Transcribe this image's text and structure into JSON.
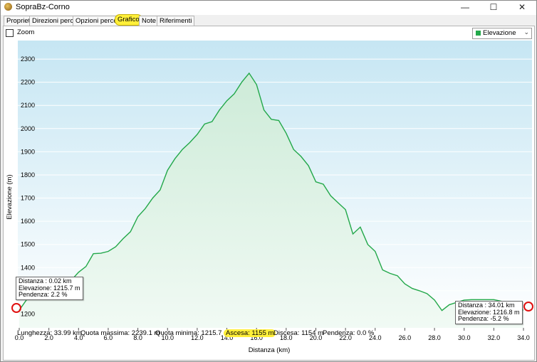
{
  "window": {
    "title": "SopraBz-Corno",
    "minimize": "—",
    "maximize": "☐",
    "close": "✕"
  },
  "tabs": [
    {
      "label": "Proprietà"
    },
    {
      "label": "Direzioni percorso"
    },
    {
      "label": "Opzioni percorso"
    },
    {
      "label": "Grafico"
    },
    {
      "label": "Note"
    },
    {
      "label": "Riferimenti"
    }
  ],
  "toolbar": {
    "zoom_label": "Zoom",
    "series_select": "Elevazione",
    "series_color": "#23a84a"
  },
  "stats": {
    "length": "Lunghezza: 33.99 km",
    "max": "Quota massima: 2239.1 m",
    "min": "Quota minima: 1215.7 m",
    "ascent": "Ascesa: 1155 m",
    "descent": "Discesa: 1154 m",
    "slope": "Pendenza: 0.0 %"
  },
  "tooltip_start": [
    "Distanza : 0.02 km",
    "Elevazione: 1215.7 m",
    "Pendenza: 2.2 %"
  ],
  "tooltip_end": [
    "Distanza : 34.01 km",
    "Elevazione: 1216.8 m",
    "Pendenza: -5.2 %"
  ],
  "chart_data": {
    "type": "area",
    "xlabel": "Distanza  (km)",
    "ylabel": "Elevazione (m)",
    "xlim": [
      0,
      34
    ],
    "ylim": [
      1140,
      2380
    ],
    "x_ticks": [
      "0.0",
      "2.0",
      "4.0",
      "6.0",
      "8.0",
      "10.0",
      "12.0",
      "14.0",
      "16.0",
      "18.0",
      "20.0",
      "22.0",
      "24.0",
      "26.0",
      "28.0",
      "30.0",
      "32.0",
      "34.0"
    ],
    "y_ticks": [
      "1200",
      "1300",
      "1400",
      "1500",
      "1600",
      "1700",
      "1800",
      "1900",
      "2000",
      "2100",
      "2200",
      "2300"
    ],
    "line_color": "#23a84a",
    "grid": true,
    "series": [
      {
        "x": [
          0.0,
          0.5,
          1.0,
          1.5,
          2.0,
          2.5,
          3.0,
          3.5,
          4.0,
          4.5,
          5.0,
          5.5,
          6.0,
          6.5,
          7.0,
          7.5,
          8.0,
          8.5,
          9.0,
          9.5,
          10.0,
          10.5,
          11.0,
          11.5,
          12.0,
          12.5,
          13.0,
          13.5,
          14.0,
          14.5,
          15.0,
          15.5,
          16.0,
          16.5,
          17.0,
          17.5,
          18.0,
          18.5,
          19.0,
          19.5,
          20.0,
          20.5,
          21.0,
          21.5,
          22.0,
          22.5,
          23.0,
          23.5,
          24.0,
          24.5,
          25.0,
          25.5,
          26.0,
          26.5,
          27.0,
          27.5,
          28.0,
          28.5,
          29.0,
          29.5,
          30.0,
          30.5,
          31.0,
          31.5,
          32.0,
          32.5,
          33.0,
          33.5,
          33.99
        ],
        "y": [
          1216,
          1262,
          1300,
          1330,
          1350,
          1358,
          1340,
          1345,
          1380,
          1405,
          1460,
          1462,
          1470,
          1490,
          1525,
          1555,
          1620,
          1655,
          1700,
          1735,
          1820,
          1870,
          1910,
          1940,
          1975,
          2020,
          2030,
          2080,
          2120,
          2150,
          2200,
          2239,
          2190,
          2080,
          2040,
          2035,
          1980,
          1910,
          1880,
          1840,
          1770,
          1760,
          1710,
          1680,
          1650,
          1545,
          1575,
          1500,
          1470,
          1390,
          1375,
          1365,
          1330,
          1310,
          1300,
          1288,
          1260,
          1215,
          1240,
          1250,
          1260,
          1262,
          1262,
          1262,
          1262,
          1255,
          1235,
          1222,
          1217
        ]
      }
    ]
  }
}
